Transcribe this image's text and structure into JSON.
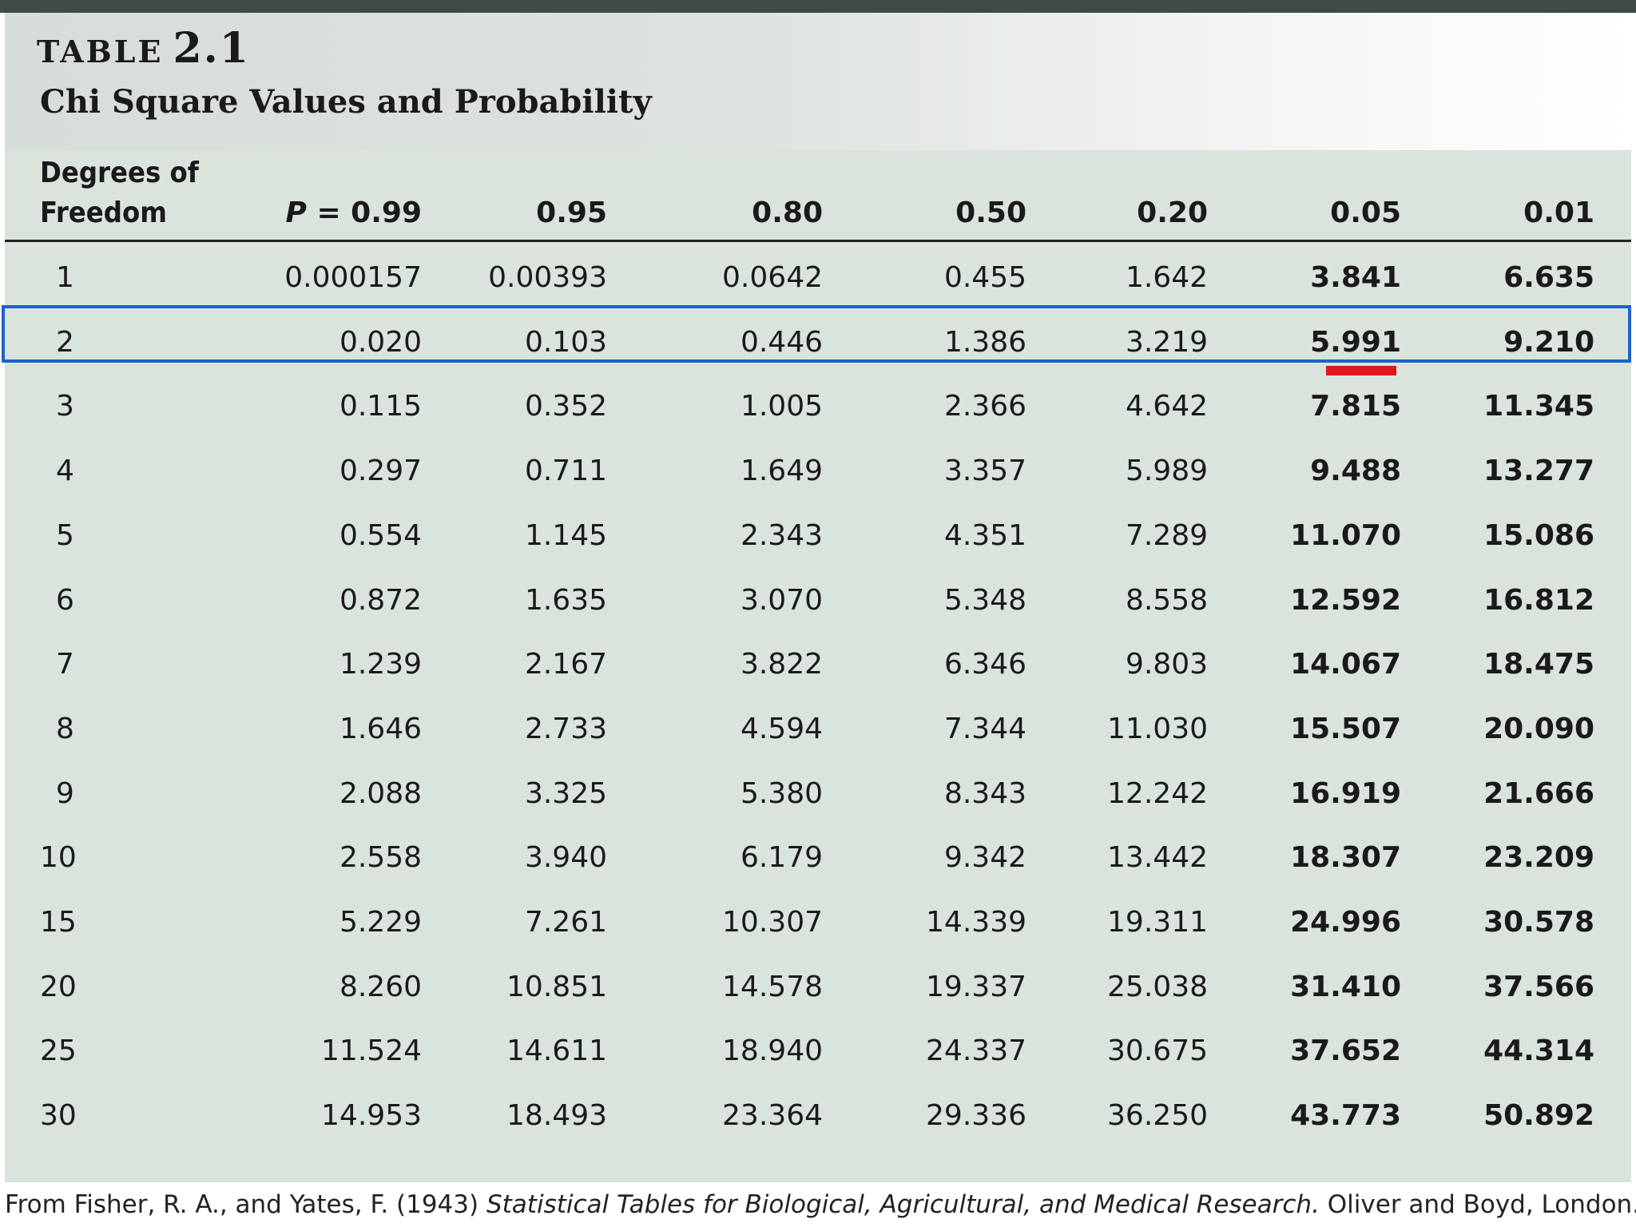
{
  "table": {
    "label_prefix": "TABLE",
    "label_number": "2.1",
    "title": "Chi Square Values and Probability",
    "headers": {
      "df_line1": "Degrees of",
      "df_line2": "Freedom",
      "p_prefix": "P",
      "p_equals": " = ",
      "columns": [
        "0.99",
        "0.95",
        "0.80",
        "0.50",
        "0.20",
        "0.05",
        "0.01"
      ]
    },
    "rows": [
      {
        "df": "1",
        "values": [
          "0.000157",
          "0.00393",
          "0.0642",
          "0.455",
          "1.642",
          "3.841",
          "6.635"
        ]
      },
      {
        "df": "2",
        "values": [
          "0.020",
          "0.103",
          "0.446",
          "1.386",
          "3.219",
          "5.991",
          "9.210"
        ]
      },
      {
        "df": "3",
        "values": [
          "0.115",
          "0.352",
          "1.005",
          "2.366",
          "4.642",
          "7.815",
          "11.345"
        ]
      },
      {
        "df": "4",
        "values": [
          "0.297",
          "0.711",
          "1.649",
          "3.357",
          "5.989",
          "9.488",
          "13.277"
        ]
      },
      {
        "df": "5",
        "values": [
          "0.554",
          "1.145",
          "2.343",
          "4.351",
          "7.289",
          "11.070",
          "15.086"
        ]
      },
      {
        "df": "6",
        "values": [
          "0.872",
          "1.635",
          "3.070",
          "5.348",
          "8.558",
          "12.592",
          "16.812"
        ]
      },
      {
        "df": "7",
        "values": [
          "1.239",
          "2.167",
          "3.822",
          "6.346",
          "9.803",
          "14.067",
          "18.475"
        ]
      },
      {
        "df": "8",
        "values": [
          "1.646",
          "2.733",
          "4.594",
          "7.344",
          "11.030",
          "15.507",
          "20.090"
        ]
      },
      {
        "df": "9",
        "values": [
          "2.088",
          "3.325",
          "5.380",
          "8.343",
          "12.242",
          "16.919",
          "21.666"
        ]
      },
      {
        "df": "10",
        "values": [
          "2.558",
          "3.940",
          "6.179",
          "9.342",
          "13.442",
          "18.307",
          "23.209"
        ]
      },
      {
        "df": "15",
        "values": [
          "5.229",
          "7.261",
          "10.307",
          "14.339",
          "19.311",
          "24.996",
          "30.578"
        ]
      },
      {
        "df": "20",
        "values": [
          "8.260",
          "10.851",
          "14.578",
          "19.337",
          "25.038",
          "31.410",
          "37.566"
        ]
      },
      {
        "df": "25",
        "values": [
          "11.524",
          "14.611",
          "18.940",
          "24.337",
          "30.675",
          "37.652",
          "44.314"
        ]
      },
      {
        "df": "30",
        "values": [
          "14.953",
          "18.493",
          "23.364",
          "29.336",
          "36.250",
          "43.773",
          "50.892"
        ]
      }
    ],
    "highlighted_df": "2",
    "emphasis_color": "#1c63c8",
    "underline_color": "#e2141c"
  },
  "source": {
    "prefix": "From Fisher, R. A., and Yates, F. (1943) ",
    "title": "Statistical Tables for Biological, Agricultural, and Medical Research.",
    "suffix": " Oliver and Boyd, London."
  }
}
